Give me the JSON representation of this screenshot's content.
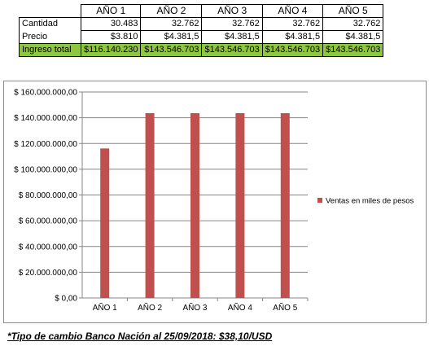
{
  "table": {
    "headers": [
      "AÑO 1",
      "AÑO 2",
      "AÑO 3",
      "AÑO 4",
      "AÑO 5"
    ],
    "rows": [
      {
        "label": "Cantidad",
        "values": [
          "30.483",
          "32.762",
          "32.762",
          "32.762",
          "32.762"
        ]
      },
      {
        "label": "Precio",
        "values": [
          "$3.810",
          "$4.381,5",
          "$4.381,5",
          "$4.381,5",
          "$4.381,5"
        ]
      },
      {
        "label": "Ingreso total",
        "values": [
          "$116.140.230",
          "$143.546.703",
          "$143.546.703",
          "$143.546.703",
          "$143.546.703"
        ]
      }
    ],
    "total_row_color": "#8dc63f"
  },
  "chart_data": {
    "type": "bar",
    "categories": [
      "AÑO 1",
      "AÑO 2",
      "AÑO 3",
      "AÑO 4",
      "AÑO 5"
    ],
    "series": [
      {
        "name": "Ventas en miles de pesos",
        "values": [
          116140230,
          143546703,
          143546703,
          143546703,
          143546703
        ],
        "color": "#c0504d"
      }
    ],
    "ylim": [
      0,
      160000000
    ],
    "yticks": [
      "$ 0,00",
      "$ 20.000.000,00",
      "$ 40.000.000,00",
      "$ 60.000.000,00",
      "$ 80.000.000,00",
      "$ 100.000.000,00",
      "$ 120.000.000,00",
      "$ 140.000.000,00",
      "$ 160.000.000,00"
    ],
    "grid": true,
    "legend": "right",
    "title": "",
    "xlabel": "",
    "ylabel": ""
  },
  "footnote": "*Tipo de cambio Banco Nación al 25/09/2018: $38,10/USD"
}
